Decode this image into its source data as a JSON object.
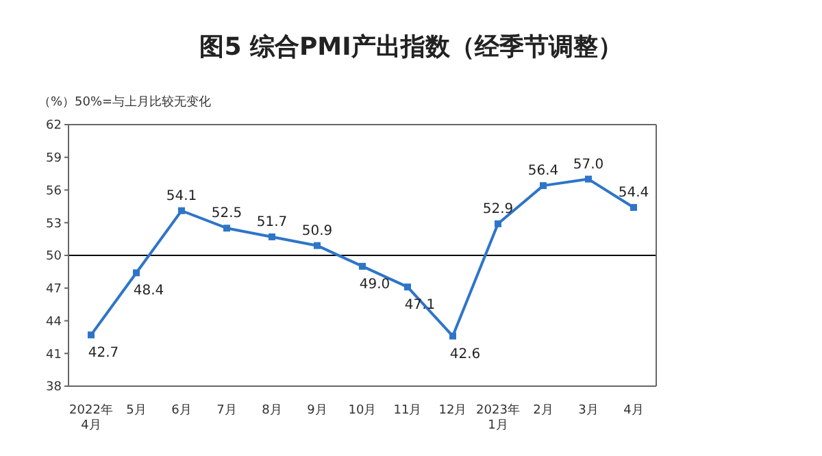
{
  "chart_data": {
    "type": "line",
    "title": "图5  综合PMI产出指数（经季节调整）",
    "ylabel": "（%）50%=与上月比较无变化",
    "categories": [
      "2022年\n4月",
      "5月",
      "6月",
      "7月",
      "8月",
      "9月",
      "10月",
      "11月",
      "12月",
      "2023年\n1月",
      "2月",
      "3月",
      "4月"
    ],
    "series": [
      {
        "color": "#2e75c8",
        "values": [
          42.7,
          48.4,
          54.1,
          52.5,
          51.7,
          50.9,
          49.0,
          47.1,
          42.6,
          52.9,
          56.4,
          57.0,
          54.4
        ],
        "value_labels": [
          "42.7",
          "48.4",
          "54.1",
          "52.5",
          "51.7",
          "50.9",
          "49.0",
          "47.1",
          "42.6",
          "52.9",
          "56.4",
          "57.0",
          "54.4"
        ]
      }
    ],
    "ylim": [
      38,
      62
    ],
    "yticks": [
      38,
      41,
      44,
      47,
      50,
      53,
      56,
      59,
      62
    ],
    "ref_lines": [
      {
        "axis": "y",
        "value": 50,
        "color": "#000000"
      }
    ],
    "marker": "square",
    "line_style": "solid",
    "grid": false
  }
}
